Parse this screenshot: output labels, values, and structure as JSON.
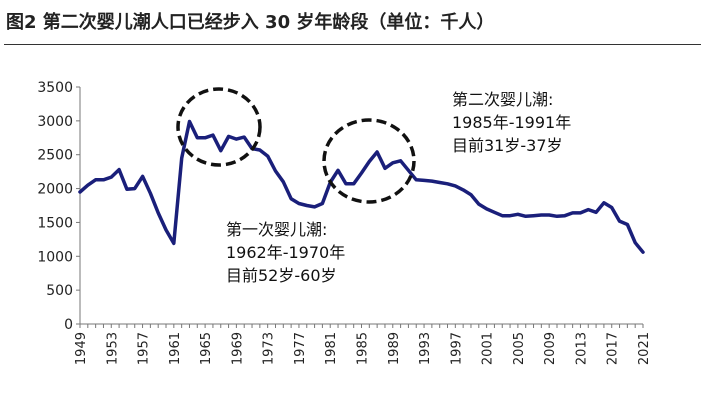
{
  "title": "图2  第二次婴儿潮人口已经步入 30 岁年龄段（单位：千人）",
  "chart_data": {
    "type": "line",
    "title": "图2  第二次婴儿潮人口已经步入 30 岁年龄段（单位：千人）",
    "xlabel": "",
    "ylabel": "",
    "ylim": [
      0,
      3500
    ],
    "xlim": [
      1949,
      2021
    ],
    "yticks": [
      0,
      500,
      1000,
      1500,
      2000,
      2500,
      3000,
      3500
    ],
    "xtick_labels": [
      "1949",
      "1953",
      "1957",
      "1961",
      "1965",
      "1969",
      "1973",
      "1977",
      "1981",
      "1985",
      "1989",
      "1993",
      "1997",
      "2001",
      "2005",
      "2009",
      "2013",
      "2017",
      "2021"
    ],
    "grid": false,
    "legend": "none",
    "line_color": "#1a1f7a",
    "series": [
      {
        "x": [
          1949,
          1950,
          1951,
          1952,
          1953,
          1954,
          1955,
          1956,
          1957,
          1958,
          1959,
          1960,
          1961,
          1962,
          1963,
          1964,
          1965,
          1966,
          1967,
          1968,
          1969,
          1970,
          1971,
          1972,
          1973,
          1974,
          1975,
          1976,
          1977,
          1978,
          1979,
          1980,
          1981,
          1982,
          1983,
          1984,
          1985,
          1986,
          1987,
          1988,
          1989,
          1990,
          1991,
          1992,
          1993,
          1994,
          1995,
          1996,
          1997,
          1998,
          1999,
          2000,
          2001,
          2002,
          2003,
          2004,
          2005,
          2006,
          2007,
          2008,
          2009,
          2010,
          2011,
          2012,
          2013,
          2014,
          2015,
          2016,
          2017,
          2018,
          2019,
          2020,
          2021
        ],
        "values": [
          1950,
          2050,
          2130,
          2130,
          2170,
          2280,
          1990,
          2000,
          2180,
          1930,
          1640,
          1390,
          1190,
          2450,
          2990,
          2750,
          2750,
          2790,
          2560,
          2770,
          2730,
          2760,
          2590,
          2570,
          2480,
          2260,
          2100,
          1850,
          1780,
          1750,
          1730,
          1780,
          2090,
          2270,
          2070,
          2070,
          2230,
          2400,
          2540,
          2300,
          2380,
          2410,
          2270,
          2130,
          2120,
          2110,
          2090,
          2070,
          2040,
          1980,
          1910,
          1770,
          1700,
          1650,
          1600,
          1600,
          1620,
          1590,
          1600,
          1610,
          1610,
          1590,
          1600,
          1640,
          1640,
          1690,
          1650,
          1790,
          1720,
          1520,
          1470,
          1200,
          1060
        ]
      }
    ],
    "annotations": [
      {
        "lines": [
          "第二次婴儿潮:",
          "1985年-1991年",
          "目前31岁-37岁"
        ]
      },
      {
        "lines": [
          "第一次婴儿潮:",
          "1962年-1970年",
          "目前52岁-60岁"
        ]
      }
    ]
  }
}
